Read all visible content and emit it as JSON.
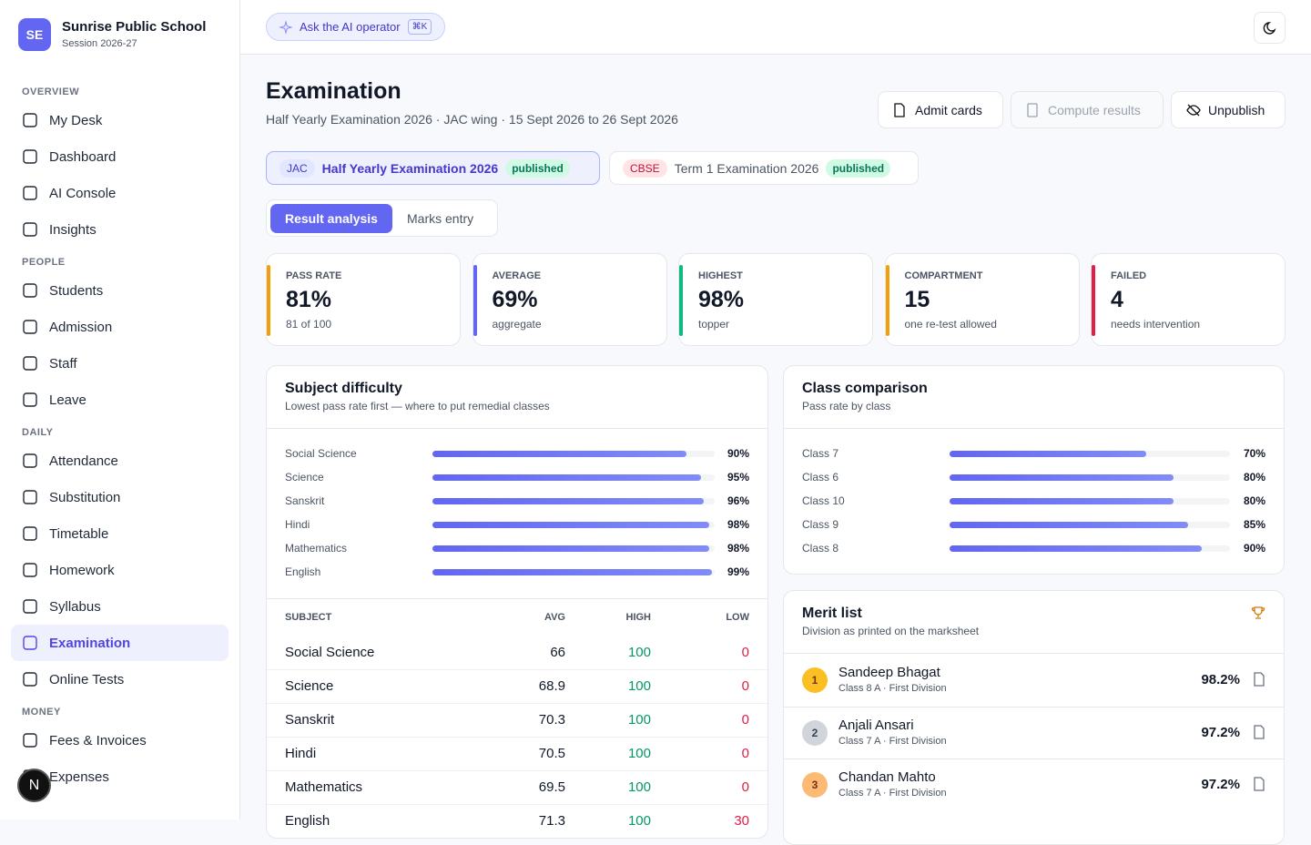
{
  "sidebar": {
    "avatar": "SE",
    "school": "Sunrise Public School",
    "session": "Session 2026-27",
    "sections": [
      {
        "title": "OVERVIEW",
        "items": [
          "My Desk",
          "Dashboard",
          "AI Console",
          "Insights"
        ]
      },
      {
        "title": "PEOPLE",
        "items": [
          "Students",
          "Admission",
          "Staff",
          "Leave"
        ]
      },
      {
        "title": "DAILY",
        "items": [
          "Attendance",
          "Substitution",
          "Timetable",
          "Homework",
          "Syllabus",
          "Examination",
          "Online Tests"
        ]
      },
      {
        "title": "MONEY",
        "items": [
          "Fees & Invoices",
          "Expenses"
        ]
      }
    ],
    "active": "Examination"
  },
  "dev_badge": "N",
  "topbar": {
    "ask": "Ask the AI operator",
    "shortcut": "⌘K"
  },
  "header": {
    "title": "Examination",
    "subtitle": "Half Yearly Examination 2026 · JAC wing · 15 Sept 2026 to 26 Sept 2026",
    "buttons": [
      "Admit cards",
      "Compute results",
      "Unpublish"
    ]
  },
  "exams": [
    {
      "board": "JAC",
      "name": "Half Yearly Examination 2026",
      "status": "published"
    },
    {
      "board": "CBSE",
      "name": "Term 1 Examination 2026",
      "status": "published"
    }
  ],
  "tabs": [
    "Result analysis",
    "Marks entry"
  ],
  "stats": [
    {
      "label": "PASS RATE",
      "value": "81%",
      "note": "81 of 100",
      "accent": "#f59e0b"
    },
    {
      "label": "AVERAGE",
      "value": "69%",
      "note": "aggregate",
      "accent": "#6366f1"
    },
    {
      "label": "HIGHEST",
      "value": "98%",
      "note": "topper",
      "accent": "#10b981"
    },
    {
      "label": "COMPARTMENT",
      "value": "15",
      "note": "one re-test allowed",
      "accent": "#f59e0b"
    },
    {
      "label": "FAILED",
      "value": "4",
      "note": "needs intervention",
      "accent": "#e11d48"
    }
  ],
  "subject_difficulty": {
    "title": "Subject difficulty",
    "subtitle": "Lowest pass rate first — where to put remedial classes",
    "categories": [
      "Social Science",
      "Science",
      "Sanskrit",
      "Hindi",
      "Mathematics",
      "English"
    ],
    "values": [
      90,
      95,
      96,
      98,
      98,
      99
    ],
    "value_labels": [
      "90%",
      "95%",
      "96%",
      "98%",
      "98%",
      "99%"
    ],
    "xlim": [
      0,
      100
    ],
    "table": {
      "headers": [
        "SUBJECT",
        "AVG",
        "HIGH",
        "LOW"
      ],
      "rows": [
        [
          "Social Science",
          66,
          100,
          0
        ],
        [
          "Science",
          68.9,
          100,
          0
        ],
        [
          "Sanskrit",
          70.3,
          100,
          0
        ],
        [
          "Hindi",
          70.5,
          100,
          0
        ],
        [
          "Mathematics",
          69.5,
          100,
          0
        ],
        [
          "English",
          71.3,
          100,
          30
        ]
      ]
    }
  },
  "class_comparison": {
    "title": "Class comparison",
    "subtitle": "Pass rate by class",
    "categories": [
      "Class 7",
      "Class 6",
      "Class 10",
      "Class 9",
      "Class 8"
    ],
    "values": [
      70,
      80,
      80,
      85,
      90
    ],
    "value_labels": [
      "70%",
      "80%",
      "80%",
      "85%",
      "90%"
    ],
    "xlim": [
      0,
      100
    ]
  },
  "merit_list": {
    "title": "Merit list",
    "subtitle": "Division as printed on the marksheet",
    "entries": [
      {
        "rank": 1,
        "name": "Sandeep Bhagat",
        "meta": "Class 8 A · First Division",
        "score": "98.2%"
      },
      {
        "rank": 2,
        "name": "Anjali Ansari",
        "meta": "Class 7 A · First Division",
        "score": "97.2%"
      },
      {
        "rank": 3,
        "name": "Chandan Mahto",
        "meta": "Class 7 A · First Division",
        "score": "97.2%"
      }
    ]
  }
}
